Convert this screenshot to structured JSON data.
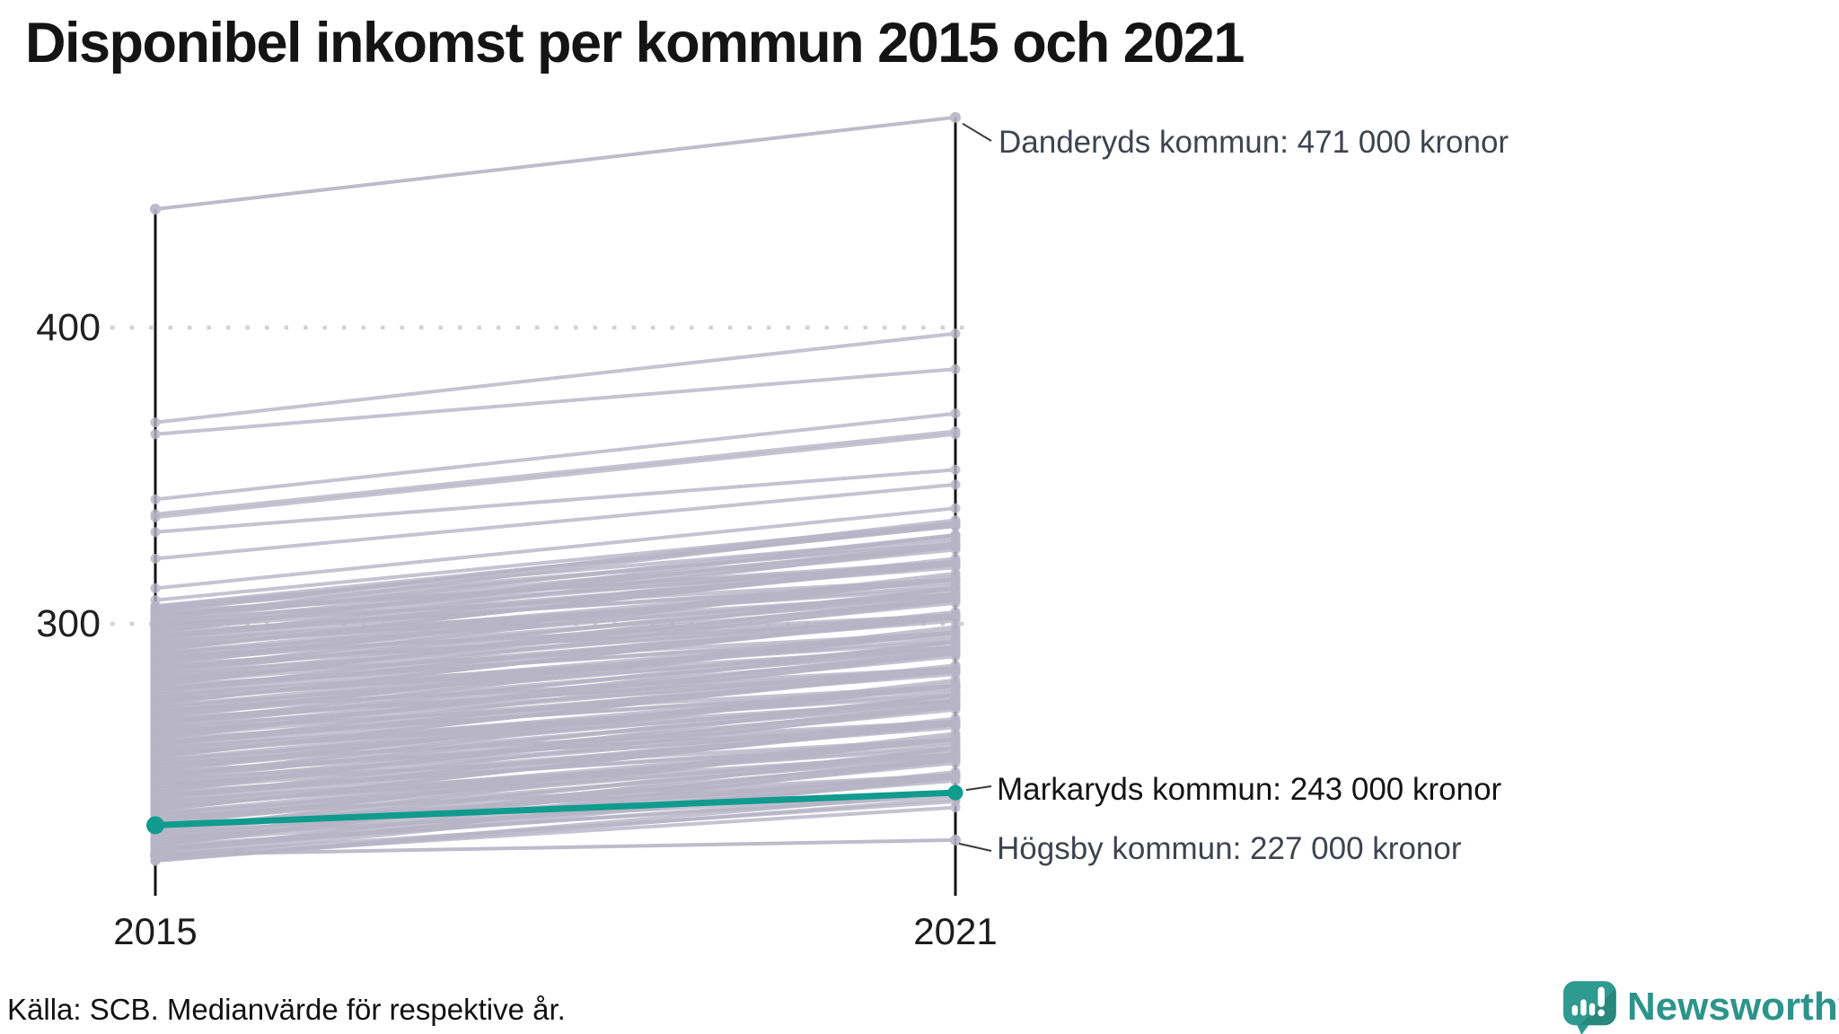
{
  "title": "Disponibel inkomst per kommun 2015 och 2021",
  "source": "Källa: SCB. Medianvärde för respektive år.",
  "branding": {
    "name": "Newsworthy",
    "color": "#2d948a"
  },
  "chart_data": {
    "type": "line",
    "subtype": "slope-chart",
    "title": "Disponibel inkomst per kommun 2015 och 2021",
    "x_categories": [
      "2015",
      "2021"
    ],
    "y_tick_labels_top_to_bottom": [
      "400",
      "300"
    ],
    "y_ticks": [
      400,
      300
    ],
    "ylim": [
      215,
      480
    ],
    "grid": "dotted-horizontal",
    "colors": {
      "line_gray": "#b7b4c6",
      "highlight_green": "#0f9b8e",
      "axis": "#141414",
      "grid_dot": "#d2d1da",
      "annotation_gray": "#3e4350",
      "annotation_dark": "#141414"
    },
    "annotations": [
      {
        "municipality": "Danderyds kommun",
        "value_2021": 471,
        "label": "Danderyds kommun: 471 000 kronor",
        "emphasis": false
      },
      {
        "municipality": "Markaryds kommun",
        "value_2021": 243,
        "label": "Markaryds kommun: 243 000 kronor",
        "emphasis": true
      },
      {
        "municipality": "Högsby kommun",
        "value_2021": 227,
        "label": "Högsby kommun: 227 000 kronor",
        "emphasis": false
      }
    ],
    "highlight_line": {
      "municipality": "Markaryds kommun",
      "values_2015_2021": [
        232,
        243
      ],
      "color": "#0f9b8e"
    },
    "named_gray_lines": {
      "Danderyds kommun": [
        440,
        471
      ],
      "Högsby kommun": [
        222,
        227
      ]
    },
    "background_lines_2015_2021": [
      [
        368,
        398
      ],
      [
        364,
        386
      ],
      [
        342,
        371
      ],
      [
        337,
        365
      ],
      [
        336,
        364
      ],
      [
        331,
        352
      ],
      [
        322,
        347
      ],
      [
        312,
        339
      ],
      [
        308,
        334
      ],
      [
        306,
        333
      ],
      [
        305,
        327
      ],
      [
        304,
        335
      ],
      [
        303,
        321
      ],
      [
        302,
        326
      ],
      [
        301,
        330
      ],
      [
        300,
        315
      ],
      [
        299,
        325
      ],
      [
        298,
        319
      ],
      [
        297,
        330
      ],
      [
        296,
        315
      ],
      [
        295,
        320
      ],
      [
        294,
        322
      ],
      [
        293,
        310
      ],
      [
        292,
        315
      ],
      [
        291,
        321
      ],
      [
        290,
        310
      ],
      [
        289,
        315
      ],
      [
        288,
        315
      ],
      [
        287,
        309
      ],
      [
        286,
        317
      ],
      [
        285,
        303
      ],
      [
        284,
        308
      ],
      [
        283,
        312
      ],
      [
        282,
        297
      ],
      [
        281,
        307
      ],
      [
        280,
        301
      ],
      [
        279,
        312
      ],
      [
        278,
        297
      ],
      [
        277,
        302
      ],
      [
        276,
        304
      ],
      [
        275,
        292
      ],
      [
        274,
        297
      ],
      [
        273,
        303
      ],
      [
        272,
        292
      ],
      [
        271,
        297
      ],
      [
        270,
        297
      ],
      [
        269,
        291
      ],
      [
        268,
        299
      ],
      [
        267,
        285
      ],
      [
        266,
        290
      ],
      [
        265,
        294
      ],
      [
        264,
        279
      ],
      [
        263,
        289
      ],
      [
        262,
        283
      ],
      [
        261,
        294
      ],
      [
        260,
        279
      ],
      [
        259,
        284
      ],
      [
        258,
        286
      ],
      [
        257,
        274
      ],
      [
        256,
        279
      ],
      [
        255,
        285
      ],
      [
        254,
        274
      ],
      [
        253,
        279
      ],
      [
        252,
        279
      ],
      [
        251,
        273
      ],
      [
        250,
        281
      ],
      [
        249,
        267
      ],
      [
        248,
        272
      ],
      [
        247,
        276
      ],
      [
        246,
        261
      ],
      [
        245,
        271
      ],
      [
        244,
        265
      ],
      [
        243,
        276
      ],
      [
        242,
        261
      ],
      [
        241,
        266
      ],
      [
        240,
        268
      ],
      [
        239,
        256
      ],
      [
        238,
        261
      ],
      [
        237,
        267
      ],
      [
        236,
        256
      ],
      [
        235,
        261
      ],
      [
        234,
        261
      ],
      [
        233,
        255
      ],
      [
        232,
        263
      ],
      [
        231,
        249
      ],
      [
        230,
        254
      ],
      [
        229,
        258
      ],
      [
        228,
        243
      ],
      [
        227,
        253
      ],
      [
        226,
        247
      ],
      [
        225,
        258
      ],
      [
        224,
        243
      ],
      [
        223,
        248
      ],
      [
        222,
        250
      ],
      [
        221,
        238
      ],
      [
        220,
        243
      ],
      [
        306,
        329
      ],
      [
        305,
        333
      ],
      [
        304,
        320
      ],
      [
        303,
        328
      ],
      [
        302,
        334
      ],
      [
        301,
        320
      ],
      [
        300,
        326
      ],
      [
        299,
        321
      ],
      [
        298,
        327
      ],
      [
        297,
        314
      ],
      [
        296,
        320
      ],
      [
        295,
        326
      ],
      [
        294,
        312
      ],
      [
        293,
        320
      ],
      [
        292,
        313
      ],
      [
        291,
        321
      ],
      [
        290,
        315
      ],
      [
        289,
        303
      ],
      [
        288,
        311
      ],
      [
        287,
        315
      ],
      [
        286,
        302
      ],
      [
        285,
        310
      ],
      [
        284,
        316
      ],
      [
        283,
        302
      ],
      [
        282,
        308
      ],
      [
        281,
        303
      ],
      [
        280,
        309
      ],
      [
        279,
        296
      ],
      [
        278,
        302
      ],
      [
        277,
        308
      ],
      [
        276,
        294
      ],
      [
        275,
        302
      ],
      [
        274,
        295
      ],
      [
        273,
        303
      ],
      [
        272,
        297
      ],
      [
        271,
        285
      ],
      [
        270,
        293
      ],
      [
        269,
        297
      ],
      [
        268,
        284
      ],
      [
        267,
        292
      ],
      [
        266,
        298
      ],
      [
        265,
        284
      ],
      [
        264,
        290
      ],
      [
        263,
        285
      ],
      [
        262,
        291
      ],
      [
        261,
        278
      ],
      [
        260,
        284
      ],
      [
        259,
        290
      ],
      [
        258,
        276
      ],
      [
        257,
        284
      ],
      [
        256,
        277
      ],
      [
        255,
        285
      ],
      [
        254,
        279
      ],
      [
        253,
        267
      ],
      [
        252,
        275
      ],
      [
        251,
        279
      ],
      [
        250,
        266
      ],
      [
        249,
        274
      ],
      [
        248,
        280
      ],
      [
        247,
        266
      ],
      [
        246,
        272
      ],
      [
        245,
        267
      ],
      [
        244,
        273
      ],
      [
        243,
        260
      ],
      [
        242,
        266
      ],
      [
        241,
        272
      ],
      [
        240,
        258
      ],
      [
        239,
        266
      ],
      [
        238,
        259
      ],
      [
        237,
        267
      ],
      [
        236,
        261
      ],
      [
        235,
        249
      ],
      [
        234,
        257
      ],
      [
        233,
        261
      ],
      [
        232,
        248
      ],
      [
        231,
        256
      ],
      [
        230,
        262
      ],
      [
        229,
        248
      ],
      [
        228,
        254
      ],
      [
        227,
        249
      ],
      [
        226,
        255
      ],
      [
        225,
        242
      ],
      [
        224,
        248
      ],
      [
        223,
        254
      ],
      [
        222,
        240
      ],
      [
        221,
        248
      ],
      [
        220,
        241
      ]
    ]
  }
}
